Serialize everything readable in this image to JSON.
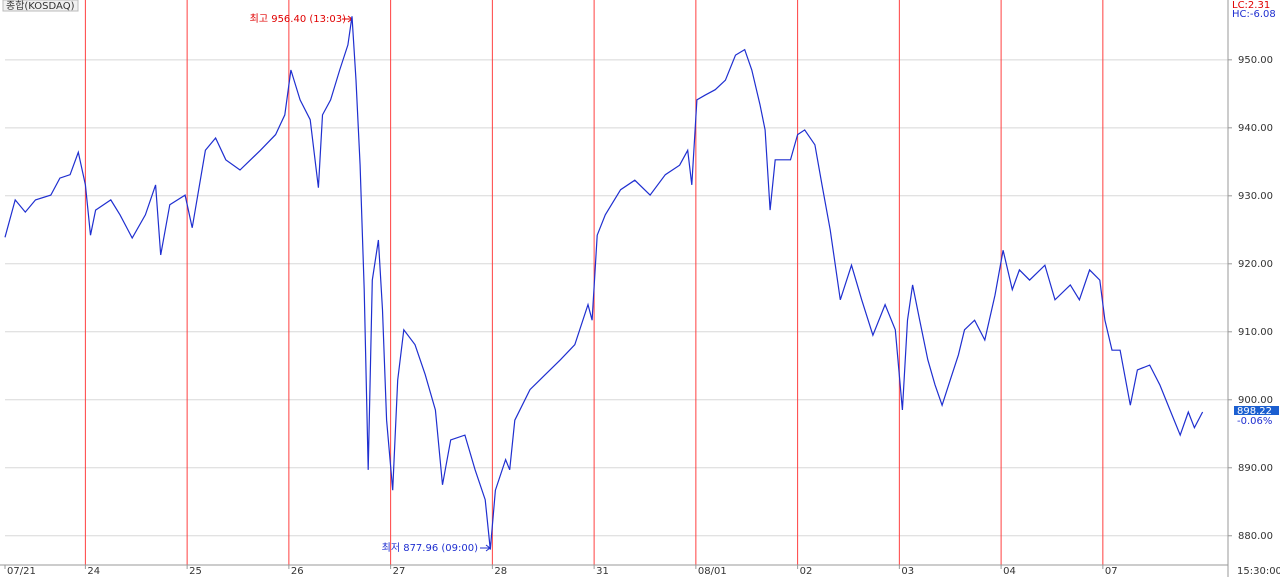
{
  "chart_data": {
    "type": "line",
    "title": "종합(KOSDAQ)",
    "legend_items": [
      "LC:2.31",
      "HC:-6.08"
    ],
    "annotations": [
      "최고 956.40 (13:03)",
      "최저 877.96 (09:00)"
    ],
    "last_price": "898.22",
    "last_change": "-0.06%",
    "close_time": "15:30:00",
    "xlim": [
      0.21,
      12.23
    ],
    "ylim": [
      875.7,
      958.8
    ],
    "xticks": [
      {
        "value": 0.21,
        "label": "07/21"
      },
      {
        "value": 1,
        "label": "24"
      },
      {
        "value": 2,
        "label": "25"
      },
      {
        "value": 3,
        "label": "26"
      },
      {
        "value": 4,
        "label": "27"
      },
      {
        "value": 5,
        "label": "28"
      },
      {
        "value": 6,
        "label": "31"
      },
      {
        "value": 7,
        "label": "08/01"
      },
      {
        "value": 8,
        "label": "02"
      },
      {
        "value": 9,
        "label": "03"
      },
      {
        "value": 10,
        "label": "04"
      },
      {
        "value": 11,
        "label": "07"
      }
    ],
    "yticks": [
      {
        "value": 880,
        "label": "880.00"
      },
      {
        "value": 890,
        "label": "890.00"
      },
      {
        "value": 900,
        "label": "900.00"
      },
      {
        "value": 910,
        "label": "910.00"
      },
      {
        "value": 920,
        "label": "920.00"
      },
      {
        "value": 930,
        "label": "930.00"
      },
      {
        "value": 940,
        "label": "940.00"
      },
      {
        "value": 950,
        "label": "950.00"
      }
    ],
    "grid": true,
    "day_line_color": "#ff4040",
    "x": [
      0.21,
      0.31,
      0.41,
      0.51,
      0.66,
      0.75,
      0.85,
      0.93,
      1.0,
      1.05,
      1.1,
      1.25,
      1.34,
      1.46,
      1.59,
      1.69,
      1.74,
      1.83,
      1.98,
      2.05,
      2.18,
      2.28,
      2.38,
      2.52,
      2.72,
      2.87,
      2.96,
      3.02,
      3.11,
      3.21,
      3.29,
      3.33,
      3.41,
      3.5,
      3.58,
      3.62,
      3.66,
      3.7,
      3.74,
      3.78,
      3.82,
      3.88,
      3.92,
      3.96,
      4.02,
      4.07,
      4.13,
      4.24,
      4.34,
      4.44,
      4.51,
      4.59,
      4.73,
      4.83,
      4.93,
      4.98,
      5.03,
      5.13,
      5.17,
      5.22,
      5.37,
      5.52,
      5.67,
      5.81,
      5.94,
      5.98,
      6.03,
      6.11,
      6.26,
      6.4,
      6.55,
      6.7,
      6.84,
      6.92,
      6.96,
      7.01,
      7.09,
      7.19,
      7.29,
      7.39,
      7.48,
      7.55,
      7.63,
      7.68,
      7.73,
      7.78,
      7.93,
      8.0,
      8.07,
      8.17,
      8.24,
      8.32,
      8.42,
      8.53,
      8.63,
      8.74,
      8.86,
      8.96,
      9.03,
      9.08,
      9.13,
      9.2,
      9.28,
      9.35,
      9.42,
      9.5,
      9.58,
      9.64,
      9.74,
      9.84,
      9.94,
      10.02,
      10.11,
      10.18,
      10.28,
      10.43,
      10.53,
      10.68,
      10.77,
      10.87,
      10.97,
      11.02,
      11.09,
      11.17,
      11.27,
      11.34,
      11.46,
      11.56,
      11.66,
      11.76,
      11.84,
      11.9,
      11.98
    ],
    "series": [
      {
        "name": "종합(KOSDAQ)",
        "color": "#1f2fd0",
        "values": [
          923.9,
          929.4,
          927.6,
          929.4,
          930.1,
          932.6,
          933.1,
          936.4,
          931.6,
          924.2,
          927.9,
          929.4,
          927.2,
          923.8,
          927.2,
          931.6,
          921.3,
          928.7,
          930.1,
          925.3,
          936.7,
          938.5,
          935.3,
          933.8,
          936.7,
          939.0,
          941.9,
          948.5,
          944.1,
          941.2,
          931.2,
          941.9,
          944.1,
          948.5,
          952.2,
          956.4,
          947.0,
          934.5,
          916.2,
          889.7,
          917.6,
          923.5,
          913.2,
          897.0,
          886.7,
          902.9,
          910.3,
          908.1,
          903.7,
          898.5,
          887.5,
          894.1,
          894.8,
          889.7,
          885.3,
          877.96,
          886.7,
          891.2,
          889.7,
          897.0,
          901.5,
          903.7,
          905.9,
          908.1,
          914.0,
          911.7,
          924.2,
          927.2,
          930.9,
          932.3,
          930.1,
          933.1,
          934.5,
          936.7,
          931.6,
          944.1,
          944.8,
          945.6,
          947.0,
          950.7,
          951.5,
          948.5,
          943.4,
          939.7,
          927.9,
          935.3,
          935.3,
          939.0,
          939.7,
          937.5,
          931.6,
          925.0,
          914.7,
          919.8,
          914.7,
          909.5,
          914.0,
          910.3,
          898.5,
          911.7,
          916.9,
          911.7,
          905.9,
          902.2,
          899.2,
          902.9,
          906.6,
          910.3,
          911.7,
          908.8,
          915.4,
          922.0,
          916.2,
          919.1,
          917.6,
          919.8,
          914.7,
          916.9,
          914.7,
          919.1,
          917.6,
          911.7,
          907.3,
          907.3,
          899.2,
          904.4,
          905.1,
          902.2,
          898.5,
          894.8,
          898.2,
          895.9,
          898.2
        ]
      }
    ]
  }
}
